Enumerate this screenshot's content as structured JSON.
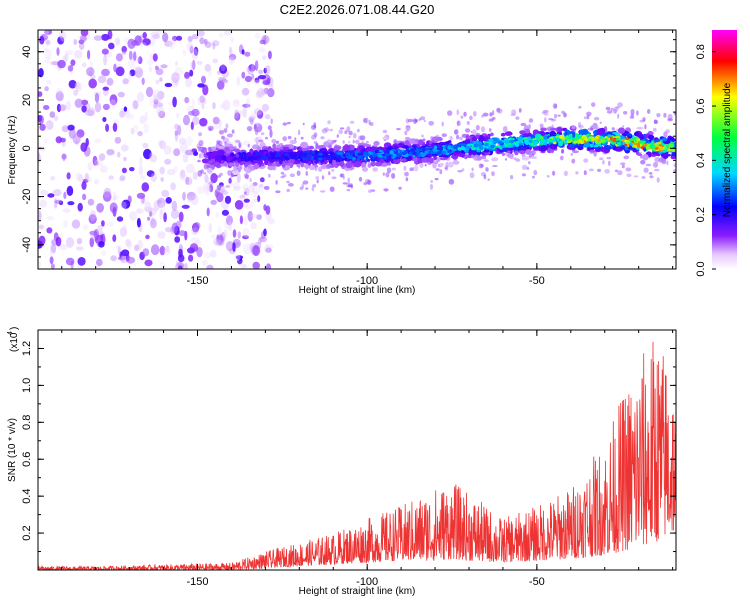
{
  "figure": {
    "title": "C2E2.2026.071.08.44.G20"
  },
  "chart_data": [
    {
      "type": "heatmap",
      "name": "spectrogram",
      "xlabel": "Height of straight line (km)",
      "ylabel": "Frequency (Hz)",
      "xlim": [
        -197,
        -9
      ],
      "ylim": [
        -50,
        49
      ],
      "xticks": [
        -150,
        -100,
        -50
      ],
      "yticks": [
        -40,
        -20,
        0,
        20,
        40
      ],
      "colorbar": {
        "label": "Normalized spectral amplitude",
        "range": [
          0.0,
          0.88
        ],
        "ticks": [
          0.0,
          0.2,
          0.4,
          0.6,
          0.8
        ],
        "colormap": [
          "#ffffff",
          "#7f00ff",
          "#0000ff",
          "#00ffff",
          "#00ff00",
          "#ffff00",
          "#ff0000",
          "#ff00ff"
        ]
      },
      "signal_track": {
        "description_points_x": [
          -197,
          -145,
          -120,
          -100,
          -80,
          -60,
          -40,
          -25,
          -9
        ],
        "center_freq_hz": [
          -7,
          -4,
          -3,
          -3,
          -1,
          2,
          4,
          3,
          0
        ],
        "peak_amplitude": [
          0.18,
          0.3,
          0.38,
          0.45,
          0.5,
          0.6,
          0.72,
          0.82,
          0.75
        ]
      },
      "noise_region_x": [
        -197,
        -140
      ]
    },
    {
      "type": "line",
      "name": "snr",
      "xlabel": "Height of straight line (km)",
      "ylabel": "SNR (10 * v/v)",
      "y_scale_label": "(x10",
      "y_scale_exponent": "4",
      "color": "#ee3333",
      "xlim": [
        -197,
        -9
      ],
      "ylim": [
        0,
        1.3
      ],
      "xticks": [
        -150,
        -100,
        -50
      ],
      "yticks": [
        0.2,
        0.4,
        0.6,
        0.8,
        1.0,
        1.2
      ],
      "x": [
        -197,
        -180,
        -160,
        -140,
        -130,
        -120,
        -110,
        -100,
        -90,
        -80,
        -75,
        -70,
        -60,
        -50,
        -40,
        -30,
        -25,
        -20,
        -15,
        -10,
        -9
      ],
      "envelope_max": [
        0.02,
        0.02,
        0.03,
        0.04,
        0.1,
        0.15,
        0.2,
        0.28,
        0.35,
        0.45,
        0.48,
        0.42,
        0.28,
        0.35,
        0.45,
        0.7,
        0.95,
        1.15,
        1.3,
        1.1,
        0.85
      ],
      "envelope_min": [
        0.0,
        0.0,
        0.0,
        0.0,
        0.01,
        0.02,
        0.03,
        0.04,
        0.05,
        0.05,
        0.06,
        0.05,
        0.04,
        0.05,
        0.06,
        0.08,
        0.1,
        0.12,
        0.15,
        0.2,
        0.2
      ]
    }
  ]
}
